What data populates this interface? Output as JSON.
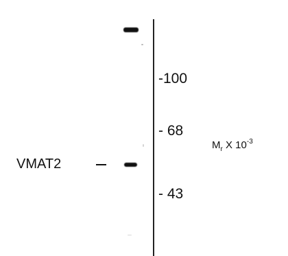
{
  "markers": {
    "m100": "-100",
    "m68": "- 68",
    "m43": "- 43"
  },
  "protein_label": "VMAT2",
  "mr": {
    "main": "M",
    "subscript": "r",
    "times": " X 10",
    "exponent": "-3"
  },
  "colors": {
    "band": "#111111",
    "background": "#ffffff"
  }
}
